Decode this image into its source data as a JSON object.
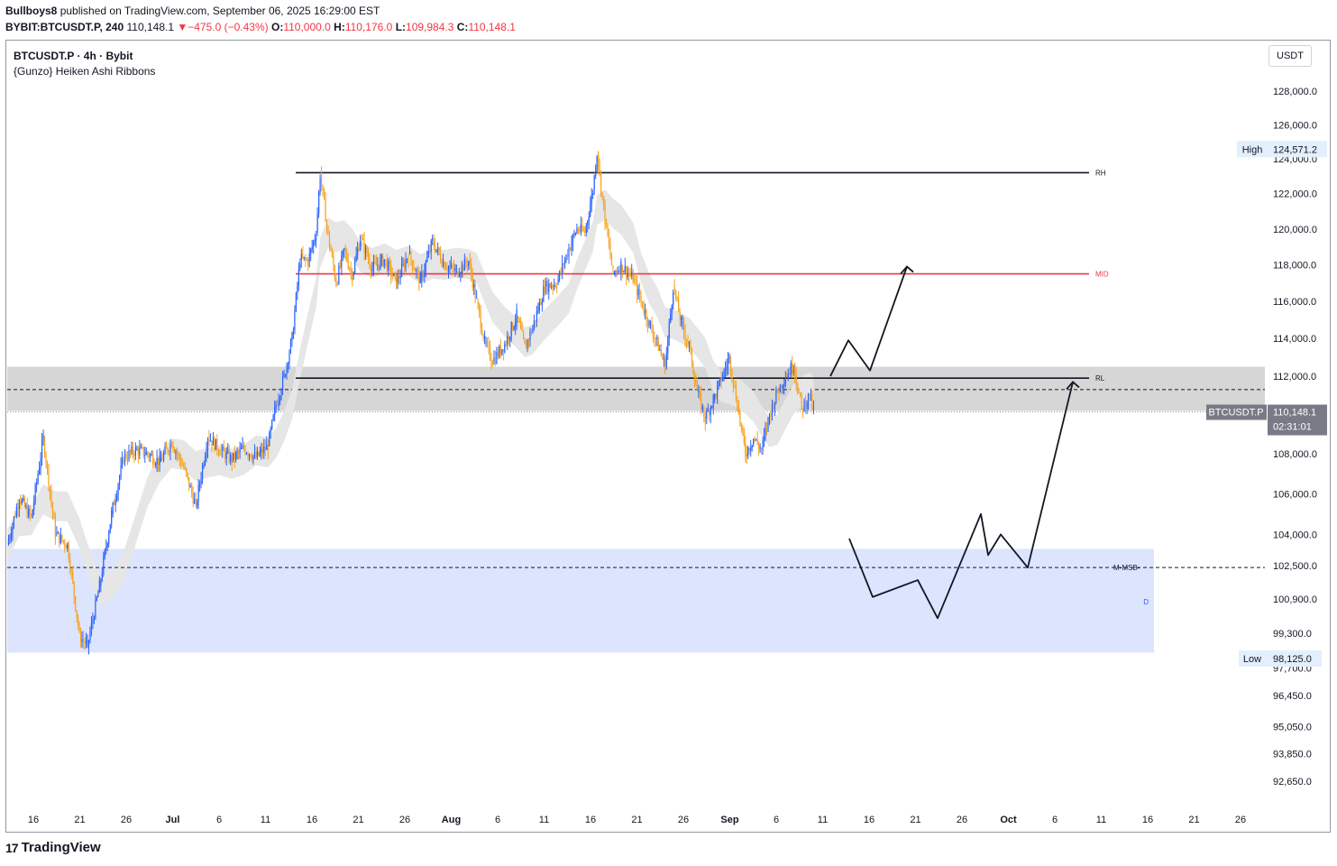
{
  "header": {
    "author": "Bullboys8",
    "published_text": "published on TradingView.com, September 06, 2025 16:29:00 EST",
    "symbol_line": "BYBIT:BTCUSDT.P, 240",
    "last": "110,148.1",
    "change_arrow": "▼",
    "change": "−475.0 (−0.43%)",
    "o_label": "O:",
    "o_value": "110,000.0",
    "h_label": "H:",
    "h_value": "110,176.0",
    "l_label": "L:",
    "l_value": "109,984.3",
    "c_label": "C:",
    "c_value": "110,148.1"
  },
  "legend": {
    "title": "BTCUSDT.P · 4h · Bybit",
    "indicator": "{Gunzo} Heiken Ashi Ribbons"
  },
  "currency_button": "USDT",
  "footer": {
    "logo_mark": "17",
    "brand": "TradingView"
  },
  "colors": {
    "up": "#2962ff",
    "down": "#f7a21b",
    "mid_line": "#f23645",
    "zone_gray": "#d6d6d6",
    "demand_zone": "#dbe3fd",
    "ribbon": "#e6e6e6"
  },
  "chart_data": {
    "type": "candlestick",
    "symbol": "BTCUSDT.P",
    "timeframe": "4h",
    "exchange": "Bybit",
    "y_axis": {
      "scale": "log",
      "ticks": [
        128000,
        126000,
        124000,
        122000,
        120000,
        118000,
        116000,
        114000,
        112000,
        110000,
        108000,
        106000,
        104000,
        102500,
        100900,
        99300,
        97700,
        96450,
        95050,
        93850,
        92650
      ],
      "tick_labels": [
        "128,000.0",
        "126,000.0",
        "124,000.0",
        "122,000.0",
        "120,000.0",
        "118,000.0",
        "116,000.0",
        "114,000.0",
        "112,000.0",
        "110,000.0",
        "108,000.0",
        "106,000.0",
        "104,000.0",
        "102,500.0",
        "100,900.0",
        "99,300.0",
        "97,700.0",
        "96,450.0",
        "95,050.0",
        "93,850.0",
        "92,650.0"
      ]
    },
    "x_axis": {
      "tick_labels": [
        "16",
        "21",
        "26",
        "Jul",
        "6",
        "11",
        "16",
        "21",
        "26",
        "Aug",
        "6",
        "11",
        "16",
        "21",
        "26",
        "Sep",
        "6",
        "11",
        "16",
        "21",
        "26",
        "Oct",
        "6",
        "11",
        "16",
        "21",
        "26"
      ],
      "bold_labels": [
        "Jul",
        "Aug",
        "Sep",
        "Oct"
      ]
    },
    "price_labels": {
      "high_label": "High",
      "high_value": "124,571.2",
      "low_label": "Low",
      "low_value": "98,125.0",
      "current_symbol": "BTCUSDT.P",
      "current_value": "110,148.1",
      "countdown": "02:31:01"
    },
    "levels": [
      {
        "name": "RH",
        "price": 123200,
        "color": "#131722"
      },
      {
        "name": "MID",
        "price": 117500,
        "color": "#f23645"
      },
      {
        "name": "RL",
        "price": 111900,
        "color": "#131722"
      },
      {
        "name": "M-MSB-",
        "price": 102400,
        "color": "#131722",
        "style": "dashed"
      }
    ],
    "zones": [
      {
        "label": "",
        "top": 112500,
        "bottom": 110200,
        "color": "#d6d6d6"
      },
      {
        "label": "D",
        "top": 103300,
        "bottom": 98400,
        "color": "#dbe3fd"
      }
    ],
    "dashed_level": 111300,
    "candles_close_path": [
      [
        0,
        103500
      ],
      [
        3,
        105800
      ],
      [
        6,
        104800
      ],
      [
        9,
        108800
      ],
      [
        12,
        104000
      ],
      [
        15,
        103500
      ],
      [
        18,
        99200
      ],
      [
        20,
        98700
      ],
      [
        23,
        101500
      ],
      [
        26,
        105000
      ],
      [
        29,
        107800
      ],
      [
        32,
        108200
      ],
      [
        35,
        108000
      ],
      [
        38,
        107600
      ],
      [
        41,
        108600
      ],
      [
        44,
        107300
      ],
      [
        47,
        105400
      ],
      [
        50,
        108900
      ],
      [
        53,
        108200
      ],
      [
        56,
        107700
      ],
      [
        59,
        108300
      ],
      [
        62,
        107800
      ],
      [
        65,
        108400
      ],
      [
        67,
        110500
      ],
      [
        69,
        112000
      ],
      [
        71,
        114000
      ],
      [
        73,
        118300
      ],
      [
        75,
        118200
      ],
      [
        77,
        119800
      ],
      [
        78,
        123100
      ],
      [
        80,
        119600
      ],
      [
        82,
        117000
      ],
      [
        84,
        118800
      ],
      [
        86,
        117400
      ],
      [
        88,
        119500
      ],
      [
        91,
        117800
      ],
      [
        94,
        118300
      ],
      [
        97,
        117000
      ],
      [
        100,
        118600
      ],
      [
        103,
        117100
      ],
      [
        106,
        119300
      ],
      [
        109,
        118000
      ],
      [
        112,
        117600
      ],
      [
        115,
        118200
      ],
      [
        117,
        116000
      ],
      [
        119,
        113800
      ],
      [
        121,
        112800
      ],
      [
        124,
        113700
      ],
      [
        127,
        115200
      ],
      [
        129,
        113500
      ],
      [
        131,
        114600
      ],
      [
        134,
        116800
      ],
      [
        137,
        117000
      ],
      [
        140,
        118900
      ],
      [
        142,
        120000
      ],
      [
        144,
        119800
      ],
      [
        146,
        122200
      ],
      [
        147,
        124400
      ],
      [
        149,
        120500
      ],
      [
        151,
        117500
      ],
      [
        153,
        118000
      ],
      [
        156,
        117200
      ],
      [
        158,
        116000
      ],
      [
        160,
        114800
      ],
      [
        162,
        113800
      ],
      [
        164,
        112500
      ],
      [
        166,
        116800
      ],
      [
        168,
        114800
      ],
      [
        170,
        113600
      ],
      [
        172,
        111200
      ],
      [
        174,
        109800
      ],
      [
        176,
        110800
      ],
      [
        178,
        111800
      ],
      [
        180,
        113000
      ],
      [
        182,
        110500
      ],
      [
        184,
        108000
      ],
      [
        186,
        108800
      ],
      [
        188,
        108200
      ],
      [
        190,
        110000
      ],
      [
        192,
        111200
      ],
      [
        194,
        112000
      ],
      [
        196,
        112600
      ],
      [
        198,
        110300
      ],
      [
        200,
        111000
      ],
      [
        201,
        110148
      ]
    ],
    "projections": [
      {
        "label": "bullish path",
        "points": [
          [
            112000,
            0
          ],
          [
            113900,
            1
          ],
          [
            112300,
            2
          ],
          [
            117900,
            3
          ]
        ]
      },
      {
        "label": "bearish path",
        "points": [
          [
            103800,
            0
          ],
          [
            101000,
            1
          ],
          [
            101800,
            2
          ],
          [
            100000,
            3
          ],
          [
            105000,
            4
          ],
          [
            103000,
            5
          ],
          [
            104000,
            6
          ],
          [
            102400,
            7
          ],
          [
            111700,
            8
          ]
        ]
      }
    ]
  }
}
